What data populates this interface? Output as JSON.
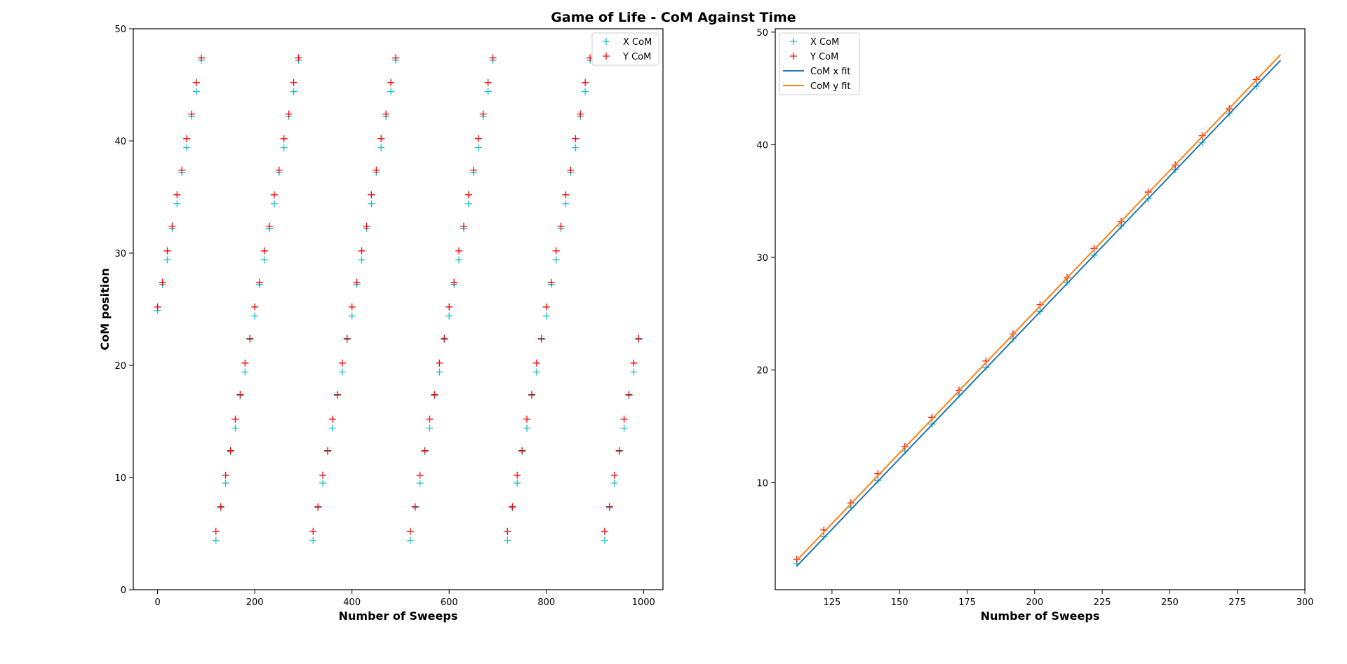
{
  "figure": {
    "title": "Game of Life - CoM Against Time"
  },
  "chart_data": [
    {
      "type": "scatter",
      "title": "",
      "xlabel": "Number of Sweeps",
      "ylabel": "CoM position",
      "xlim": [
        -50,
        1040
      ],
      "ylim": [
        0,
        50
      ],
      "xticks": [
        0,
        200,
        400,
        600,
        800,
        1000
      ],
      "yticks": [
        0,
        10,
        20,
        30,
        40,
        50
      ],
      "grid": false,
      "legend_position": "top-right",
      "series": [
        {
          "name": "X CoM",
          "marker": "+",
          "color": "#17becf",
          "points": [
            [
              0,
              24.9
            ],
            [
              10,
              27.2
            ],
            [
              20,
              29.4
            ],
            [
              30,
              32.2
            ],
            [
              40,
              34.4
            ],
            [
              50,
              37.2
            ],
            [
              60,
              39.4
            ],
            [
              70,
              42.2
            ],
            [
              80,
              44.4
            ],
            [
              90,
              47.2
            ],
            [
              120,
              4.4
            ],
            [
              130,
              7.3
            ],
            [
              140,
              9.5
            ],
            [
              150,
              12.3
            ],
            [
              160,
              14.4
            ],
            [
              170,
              17.3
            ],
            [
              180,
              19.4
            ],
            [
              190,
              22.3
            ],
            [
              200,
              24.4
            ],
            [
              210,
              27.2
            ],
            [
              220,
              29.4
            ],
            [
              230,
              32.2
            ],
            [
              240,
              34.4
            ],
            [
              250,
              37.2
            ],
            [
              260,
              39.4
            ],
            [
              270,
              42.2
            ],
            [
              280,
              44.4
            ],
            [
              290,
              47.2
            ],
            [
              320,
              4.4
            ],
            [
              330,
              7.3
            ],
            [
              340,
              9.5
            ],
            [
              350,
              12.3
            ],
            [
              360,
              14.4
            ],
            [
              370,
              17.3
            ],
            [
              380,
              19.4
            ],
            [
              390,
              22.3
            ],
            [
              400,
              24.4
            ],
            [
              410,
              27.2
            ],
            [
              420,
              29.4
            ],
            [
              430,
              32.2
            ],
            [
              440,
              34.4
            ],
            [
              450,
              37.2
            ],
            [
              460,
              39.4
            ],
            [
              470,
              42.2
            ],
            [
              480,
              44.4
            ],
            [
              490,
              47.2
            ],
            [
              520,
              4.4
            ],
            [
              530,
              7.3
            ],
            [
              540,
              9.5
            ],
            [
              550,
              12.3
            ],
            [
              560,
              14.4
            ],
            [
              570,
              17.3
            ],
            [
              580,
              19.4
            ],
            [
              590,
              22.3
            ],
            [
              600,
              24.4
            ],
            [
              610,
              27.2
            ],
            [
              620,
              29.4
            ],
            [
              630,
              32.2
            ],
            [
              640,
              34.4
            ],
            [
              650,
              37.2
            ],
            [
              660,
              39.4
            ],
            [
              670,
              42.2
            ],
            [
              680,
              44.4
            ],
            [
              690,
              47.2
            ],
            [
              720,
              4.4
            ],
            [
              730,
              7.3
            ],
            [
              740,
              9.5
            ],
            [
              750,
              12.3
            ],
            [
              760,
              14.4
            ],
            [
              770,
              17.3
            ],
            [
              780,
              19.4
            ],
            [
              790,
              22.3
            ],
            [
              800,
              24.4
            ],
            [
              810,
              27.2
            ],
            [
              820,
              29.4
            ],
            [
              830,
              32.2
            ],
            [
              840,
              34.4
            ],
            [
              850,
              37.2
            ],
            [
              860,
              39.4
            ],
            [
              870,
              42.2
            ],
            [
              880,
              44.4
            ],
            [
              890,
              47.2
            ],
            [
              920,
              4.4
            ],
            [
              930,
              7.3
            ],
            [
              940,
              9.5
            ],
            [
              950,
              12.3
            ],
            [
              960,
              14.4
            ],
            [
              970,
              17.3
            ],
            [
              980,
              19.4
            ],
            [
              990,
              22.3
            ]
          ]
        },
        {
          "name": "Y CoM",
          "marker": "+",
          "color": "#ff0000",
          "points": [
            [
              0,
              25.2
            ],
            [
              10,
              27.4
            ],
            [
              20,
              30.2
            ],
            [
              30,
              32.4
            ],
            [
              40,
              35.2
            ],
            [
              50,
              37.4
            ],
            [
              60,
              40.2
            ],
            [
              70,
              42.4
            ],
            [
              80,
              45.2
            ],
            [
              90,
              47.4
            ],
            [
              120,
              5.2
            ],
            [
              130,
              7.4
            ],
            [
              140,
              10.2
            ],
            [
              150,
              12.4
            ],
            [
              160,
              15.2
            ],
            [
              170,
              17.4
            ],
            [
              180,
              20.2
            ],
            [
              190,
              22.4
            ],
            [
              200,
              25.2
            ],
            [
              210,
              27.4
            ],
            [
              220,
              30.2
            ],
            [
              230,
              32.4
            ],
            [
              240,
              35.2
            ],
            [
              250,
              37.4
            ],
            [
              260,
              40.2
            ],
            [
              270,
              42.4
            ],
            [
              280,
              45.2
            ],
            [
              290,
              47.4
            ],
            [
              320,
              5.2
            ],
            [
              330,
              7.4
            ],
            [
              340,
              10.2
            ],
            [
              350,
              12.4
            ],
            [
              360,
              15.2
            ],
            [
              370,
              17.4
            ],
            [
              380,
              20.2
            ],
            [
              390,
              22.4
            ],
            [
              400,
              25.2
            ],
            [
              410,
              27.4
            ],
            [
              420,
              30.2
            ],
            [
              430,
              32.4
            ],
            [
              440,
              35.2
            ],
            [
              450,
              37.4
            ],
            [
              460,
              40.2
            ],
            [
              470,
              42.4
            ],
            [
              480,
              45.2
            ],
            [
              490,
              47.4
            ],
            [
              520,
              5.2
            ],
            [
              530,
              7.4
            ],
            [
              540,
              10.2
            ],
            [
              550,
              12.4
            ],
            [
              560,
              15.2
            ],
            [
              570,
              17.4
            ],
            [
              580,
              20.2
            ],
            [
              590,
              22.4
            ],
            [
              600,
              25.2
            ],
            [
              610,
              27.4
            ],
            [
              620,
              30.2
            ],
            [
              630,
              32.4
            ],
            [
              640,
              35.2
            ],
            [
              650,
              37.4
            ],
            [
              660,
              40.2
            ],
            [
              670,
              42.4
            ],
            [
              680,
              45.2
            ],
            [
              690,
              47.4
            ],
            [
              720,
              5.2
            ],
            [
              730,
              7.4
            ],
            [
              740,
              10.2
            ],
            [
              750,
              12.4
            ],
            [
              760,
              15.2
            ],
            [
              770,
              17.4
            ],
            [
              780,
              20.2
            ],
            [
              790,
              22.4
            ],
            [
              800,
              25.2
            ],
            [
              810,
              27.4
            ],
            [
              820,
              30.2
            ],
            [
              830,
              32.4
            ],
            [
              840,
              35.2
            ],
            [
              850,
              37.4
            ],
            [
              860,
              40.2
            ],
            [
              870,
              42.4
            ],
            [
              880,
              45.2
            ],
            [
              890,
              47.4
            ],
            [
              920,
              5.2
            ],
            [
              930,
              7.4
            ],
            [
              940,
              10.2
            ],
            [
              950,
              12.4
            ],
            [
              960,
              15.2
            ],
            [
              970,
              17.4
            ],
            [
              980,
              20.2
            ],
            [
              990,
              22.4
            ]
          ]
        }
      ]
    },
    {
      "type": "scatter",
      "title": "",
      "xlabel": "Number of Sweeps",
      "ylabel": "",
      "xlim": [
        104,
        300
      ],
      "ylim": [
        0.5,
        50.3
      ],
      "xticks": [
        125,
        150,
        175,
        200,
        225,
        250,
        275,
        300
      ],
      "yticks": [
        10,
        20,
        30,
        40,
        50
      ],
      "grid": false,
      "legend_position": "top-left",
      "series": [
        {
          "name": "X CoM",
          "marker": "+",
          "color": "#17becf",
          "points": [
            [
              112,
              2.8
            ],
            [
              122,
              5.2
            ],
            [
              132,
              7.8
            ],
            [
              142,
              10.2
            ],
            [
              152,
              12.8
            ],
            [
              162,
              15.2
            ],
            [
              172,
              17.8
            ],
            [
              182,
              20.2
            ],
            [
              192,
              22.8
            ],
            [
              202,
              25.2
            ],
            [
              212,
              27.8
            ],
            [
              222,
              30.2
            ],
            [
              232,
              32.8
            ],
            [
              242,
              35.2
            ],
            [
              252,
              37.8
            ],
            [
              262,
              40.2
            ],
            [
              272,
              42.8
            ],
            [
              282,
              45.2
            ]
          ]
        },
        {
          "name": "Y CoM",
          "marker": "+",
          "color": "#ff0000",
          "points": [
            [
              112,
              3.2
            ],
            [
              122,
              5.8
            ],
            [
              132,
              8.2
            ],
            [
              142,
              10.8
            ],
            [
              152,
              13.2
            ],
            [
              162,
              15.8
            ],
            [
              172,
              18.2
            ],
            [
              182,
              20.8
            ],
            [
              192,
              23.2
            ],
            [
              202,
              25.8
            ],
            [
              212,
              28.2
            ],
            [
              222,
              30.8
            ],
            [
              232,
              33.2
            ],
            [
              242,
              35.8
            ],
            [
              252,
              38.2
            ],
            [
              262,
              40.8
            ],
            [
              272,
              43.2
            ],
            [
              282,
              45.8
            ]
          ]
        },
        {
          "name": "CoM x fit",
          "type": "line",
          "color": "#1f77b4",
          "points": [
            [
              112,
              2.6
            ],
            [
              291,
              47.5
            ]
          ]
        },
        {
          "name": "CoM y fit",
          "type": "line",
          "color": "#ff7f0e",
          "points": [
            [
              112,
              3.1
            ],
            [
              291,
              48.0
            ]
          ]
        }
      ]
    }
  ]
}
